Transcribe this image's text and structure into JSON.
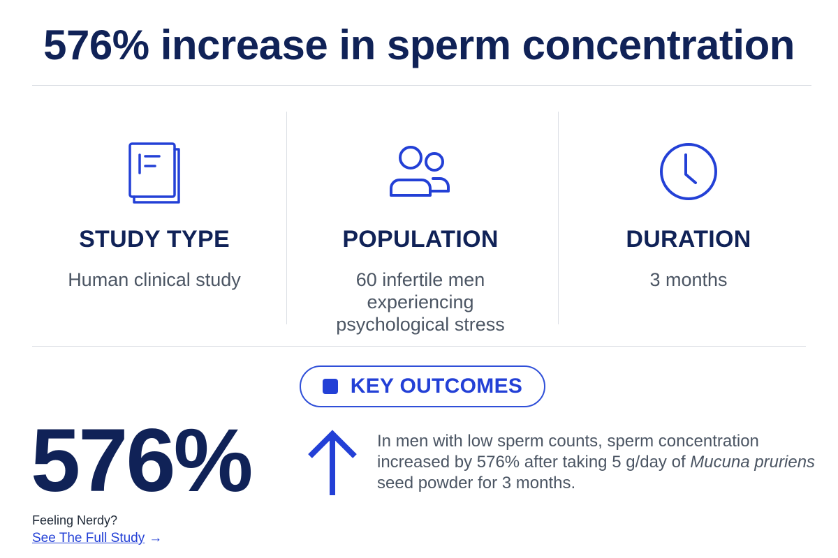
{
  "headline": "576% increase in sperm concentration",
  "stats": [
    {
      "label": "STUDY TYPE",
      "value": "Human clinical study",
      "icon": "book-icon"
    },
    {
      "label": "POPULATION",
      "value": "60 infertile men experiencing psychological stress",
      "icon": "people-icon"
    },
    {
      "label": "DURATION",
      "value": "3 months",
      "icon": "clock-icon"
    }
  ],
  "key_outcomes": {
    "label": "KEY OUTCOMES",
    "big_value": "576%",
    "arrow_icon": "arrow-up-icon",
    "description": {
      "part1": "In men with low sperm counts, sperm concentration increased by 576% after taking 5 g/day of ",
      "italic": "Mucuna pruriens",
      "part2": " seed powder for 3 months."
    }
  },
  "footer": {
    "prompt": "Feeling Nerdy?",
    "link_label": "See The Full Study",
    "link_arrow": "→"
  },
  "colors": {
    "navy": "#102257",
    "accent_blue": "#2340d6",
    "body_gray": "#4b5563",
    "divider": "#dcdfe5"
  }
}
